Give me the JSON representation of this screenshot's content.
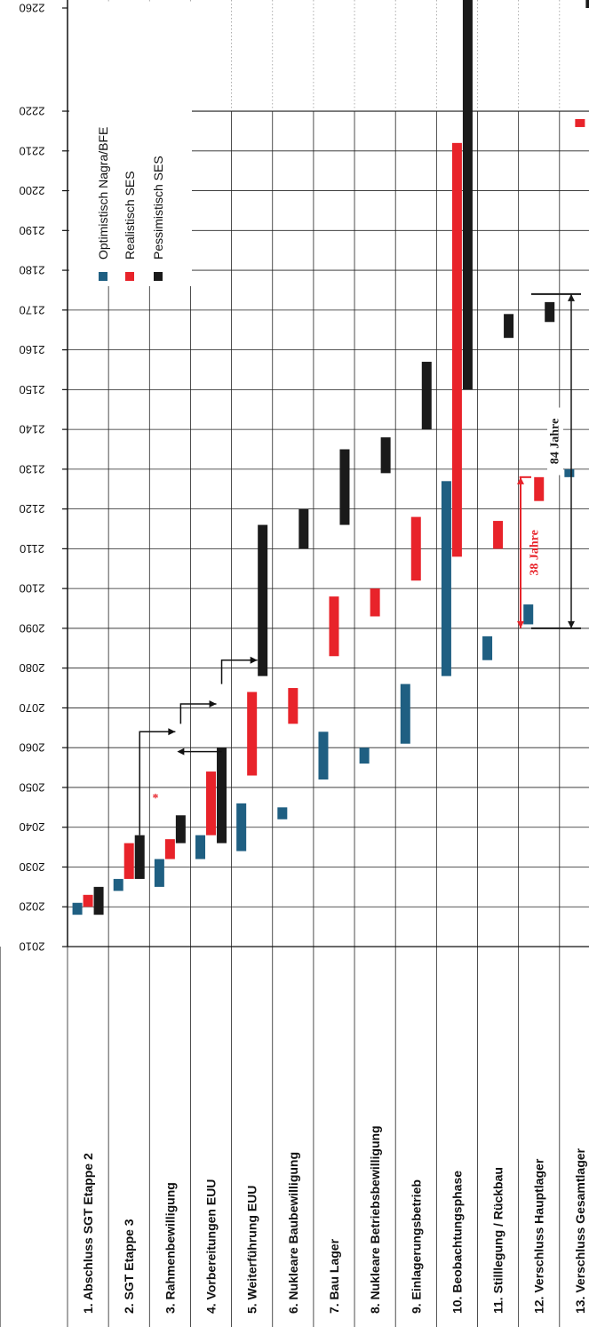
{
  "chart_data": {
    "type": "gantt",
    "orientation": "rotated-90-ccw",
    "year_axis": {
      "min": 2010,
      "max": 2260,
      "ticks": [
        2010,
        2020,
        2030,
        2040,
        2050,
        2060,
        2070,
        2080,
        2090,
        2100,
        2110,
        2120,
        2130,
        2140,
        2150,
        2160,
        2170,
        2180,
        2190,
        2200,
        2210,
        2220,
        2260
      ],
      "axis_break": "between 2220 and 2260"
    },
    "categories": [
      "1. Abschluss SGT Etappe 2",
      "2. SGT Etappe 3",
      "3. Rahmenbewilligung",
      "4. Vorbereitungen EUU",
      "5. Weiterführung EUU",
      "6. Nukleare Baubewilligung",
      "7. Bau Lager",
      "8. Nukleare Betriebsbewilligung",
      "9. Einlagerungsbetrieb",
      "10. Beobachtungsphase",
      "11. Stilllegung / Rückbau",
      "12. Verschluss Hauptlager",
      "13. Verschluss Gesamtlager"
    ],
    "series": [
      {
        "name": "Optimistisch Nagra/BFE",
        "color": "#1f5f82",
        "ranges": [
          [
            2018,
            2021
          ],
          [
            2024,
            2027
          ],
          [
            2025,
            2032
          ],
          [
            2032,
            2038
          ],
          [
            2034,
            2046
          ],
          [
            2042,
            2045
          ],
          [
            2052,
            2064
          ],
          [
            2056,
            2060
          ],
          [
            2061,
            2076
          ],
          [
            2078,
            2127
          ],
          [
            2082,
            2088
          ],
          [
            2091,
            2096
          ],
          [
            2128,
            2130
          ]
        ]
      },
      {
        "name": "Realistisch SES",
        "color": "#e8232a",
        "ranges": [
          [
            2020,
            2023
          ],
          [
            2027,
            2036
          ],
          [
            2032,
            2037
          ],
          [
            2038,
            2054
          ],
          [
            2053,
            2074
          ],
          [
            2066,
            2075
          ],
          [
            2083,
            2098
          ],
          [
            2093,
            2100
          ],
          [
            2102,
            2118
          ],
          [
            2108,
            2212
          ],
          [
            2110,
            2117
          ],
          [
            2122,
            2128
          ],
          [
            2216,
            2218
          ]
        ]
      },
      {
        "name": "Pessimistisch SES",
        "color": "#1a1a1a",
        "ranges": [
          [
            2018,
            2025
          ],
          [
            2027,
            2038
          ],
          [
            2036,
            2043
          ],
          [
            2036,
            2060
          ],
          [
            2078,
            2116
          ],
          [
            2110,
            2120
          ],
          [
            2116,
            2135
          ],
          [
            2129,
            2138
          ],
          [
            2140,
            2157
          ],
          [
            2150,
            2265
          ],
          [
            2163,
            2169
          ],
          [
            2167,
            2172
          ],
          [
            2260,
            2275
          ]
        ]
      }
    ],
    "annotations": {
      "asterisk": "*",
      "span_realistic": "38 Jahre",
      "span_pessimistic": "84 Jahre",
      "span_realistic_color": "#e8232a",
      "span_pessimistic_color": "#1a1a1a"
    },
    "legend_position": "top-left"
  }
}
